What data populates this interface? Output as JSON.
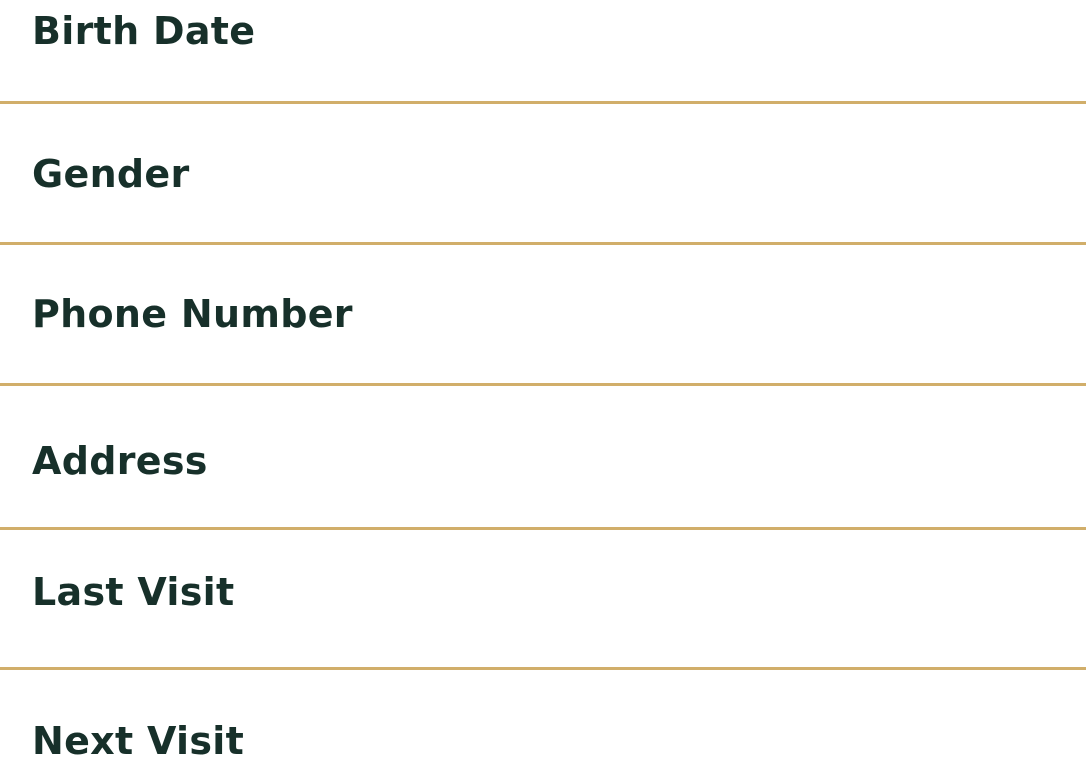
{
  "theme": {
    "label_color": "#17302a",
    "divider_color": "#d1ae6a",
    "background": "#ffffff"
  },
  "fields": [
    {
      "label": "Birth Date"
    },
    {
      "label": "Gender"
    },
    {
      "label": "Phone Number"
    },
    {
      "label": "Address"
    },
    {
      "label": "Last Visit"
    },
    {
      "label": "Next Visit"
    }
  ]
}
